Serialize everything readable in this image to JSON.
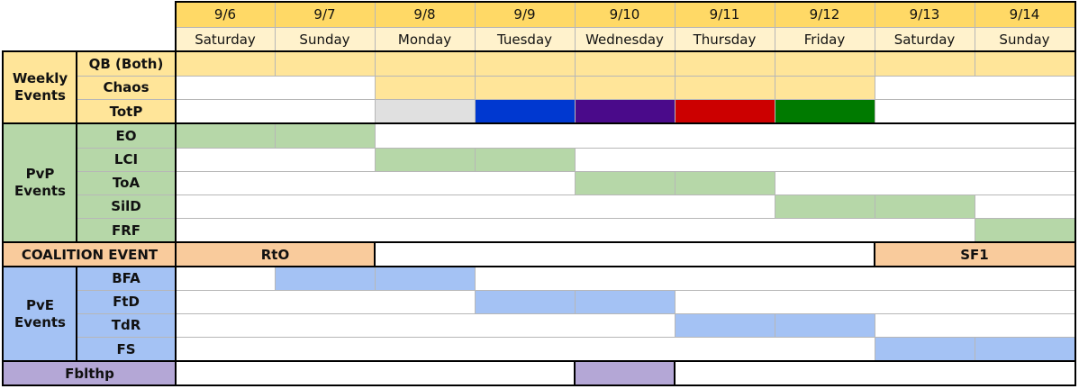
{
  "colors": {
    "header_date": "#ffd966",
    "header_day": "#fff2cc",
    "weekly": "#ffe599",
    "pvp": "#b6d7a8",
    "coalition": "#f9cb9c",
    "pve": "#a4c2f4",
    "fblthp": "#b4a7d6",
    "totp_gray": "#e0e0e0",
    "totp_blue": "#0038d0",
    "totp_purple": "#4a0a8a",
    "totp_red": "#cc0000",
    "totp_green": "#007a00",
    "grid": "#b7b7b7",
    "border": "#000000"
  },
  "days": [
    {
      "date": "9/6",
      "day": "Saturday"
    },
    {
      "date": "9/7",
      "day": "Sunday"
    },
    {
      "date": "9/8",
      "day": "Monday"
    },
    {
      "date": "9/9",
      "day": "Tuesday"
    },
    {
      "date": "9/10",
      "day": "Wednesday"
    },
    {
      "date": "9/11",
      "day": "Thursday"
    },
    {
      "date": "9/12",
      "day": "Friday"
    },
    {
      "date": "9/13",
      "day": "Saturday"
    },
    {
      "date": "9/14",
      "day": "Sunday"
    }
  ],
  "groups": [
    {
      "label": "Weekly Events",
      "color": "weekly",
      "rows": [
        0,
        1,
        2
      ]
    },
    {
      "label": "PvP Events",
      "color": "pvp",
      "rows": [
        3,
        4,
        5,
        6,
        7
      ]
    },
    {
      "label": "PvE Events",
      "color": "pve",
      "rows": [
        9,
        10,
        11,
        12
      ]
    }
  ],
  "rows": [
    {
      "label": "QB (Both)",
      "color": "weekly",
      "bars": [
        {
          "start": 0,
          "span": 9,
          "color": "weekly"
        }
      ]
    },
    {
      "label": "Chaos",
      "color": "weekly",
      "bars": [
        {
          "start": 2,
          "span": 5,
          "color": "weekly"
        }
      ]
    },
    {
      "label": "TotP",
      "color": "weekly",
      "bars": [
        {
          "start": 2,
          "span": 1,
          "color": "totp_gray"
        },
        {
          "start": 3,
          "span": 1,
          "color": "totp_blue"
        },
        {
          "start": 4,
          "span": 1,
          "color": "totp_purple"
        },
        {
          "start": 5,
          "span": 1,
          "color": "totp_red"
        },
        {
          "start": 6,
          "span": 1,
          "color": "totp_green"
        }
      ]
    },
    {
      "label": "EO",
      "color": "pvp",
      "bars": [
        {
          "start": 0,
          "span": 2,
          "color": "pvp"
        }
      ]
    },
    {
      "label": "LCI",
      "color": "pvp",
      "bars": [
        {
          "start": 2,
          "span": 2,
          "color": "pvp"
        }
      ]
    },
    {
      "label": "ToA",
      "color": "pvp",
      "bars": [
        {
          "start": 4,
          "span": 2,
          "color": "pvp"
        }
      ]
    },
    {
      "label": "SilD",
      "color": "pvp",
      "bars": [
        {
          "start": 6,
          "span": 2,
          "color": "pvp"
        }
      ]
    },
    {
      "label": "FRF",
      "color": "pvp",
      "bars": [
        {
          "start": 8,
          "span": 1,
          "color": "pvp"
        }
      ]
    },
    {
      "label": "COALITION EVENT",
      "color": "coalition",
      "full": true,
      "bars": [
        {
          "start": 0,
          "span": 2,
          "color": "coalition",
          "text": "RtO"
        },
        {
          "start": 7,
          "span": 2,
          "color": "coalition",
          "text": "SF1"
        }
      ]
    },
    {
      "label": "BFA",
      "color": "pve",
      "bars": [
        {
          "start": 1,
          "span": 2,
          "color": "pve"
        }
      ]
    },
    {
      "label": "FtD",
      "color": "pve",
      "bars": [
        {
          "start": 3,
          "span": 2,
          "color": "pve"
        }
      ]
    },
    {
      "label": "TdR",
      "color": "pve",
      "bars": [
        {
          "start": 5,
          "span": 2,
          "color": "pve"
        }
      ]
    },
    {
      "label": "FS",
      "color": "pve",
      "bars": [
        {
          "start": 7,
          "span": 2,
          "color": "pve"
        }
      ]
    },
    {
      "label": "Fblthp",
      "color": "fblthp",
      "full": true,
      "bars": [
        {
          "start": 4,
          "span": 1,
          "color": "fblthp"
        }
      ]
    }
  ]
}
